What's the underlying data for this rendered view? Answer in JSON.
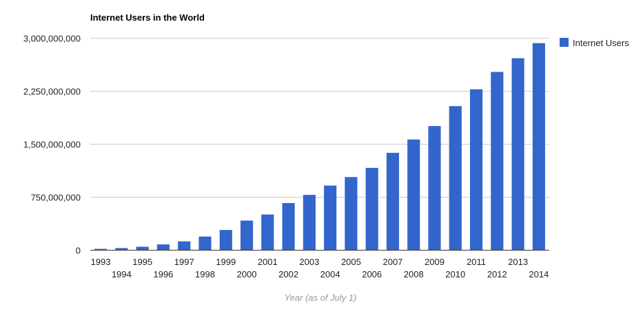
{
  "chart_data": {
    "type": "bar",
    "title": "Internet Users in the World",
    "xlabel": "Year (as of July 1)",
    "ylabel": "",
    "categories": [
      "1993",
      "1994",
      "1995",
      "1996",
      "1997",
      "1998",
      "1999",
      "2000",
      "2001",
      "2002",
      "2003",
      "2004",
      "2005",
      "2006",
      "2007",
      "2008",
      "2009",
      "2010",
      "2011",
      "2012",
      "2013",
      "2014"
    ],
    "series": [
      {
        "name": "Internet Users",
        "color": "#3366cc",
        "values": [
          14000000,
          25000000,
          44000000,
          77000000,
          120000000,
          188000000,
          281000000,
          414000000,
          500000000,
          662000000,
          778000000,
          910000000,
          1030000000,
          1160000000,
          1373000000,
          1562000000,
          1752000000,
          2034000000,
          2272000000,
          2518000000,
          2712000000,
          2925000000
        ]
      }
    ],
    "ylim": [
      0,
      3000000000
    ],
    "yticks": [
      0,
      750000000,
      1500000000,
      2250000000,
      3000000000
    ],
    "ytick_labels": [
      "0",
      "750,000,000",
      "1,500,000,000",
      "2,250,000,000",
      "3,000,000,000"
    ],
    "grid": true,
    "legend_position": "right"
  }
}
